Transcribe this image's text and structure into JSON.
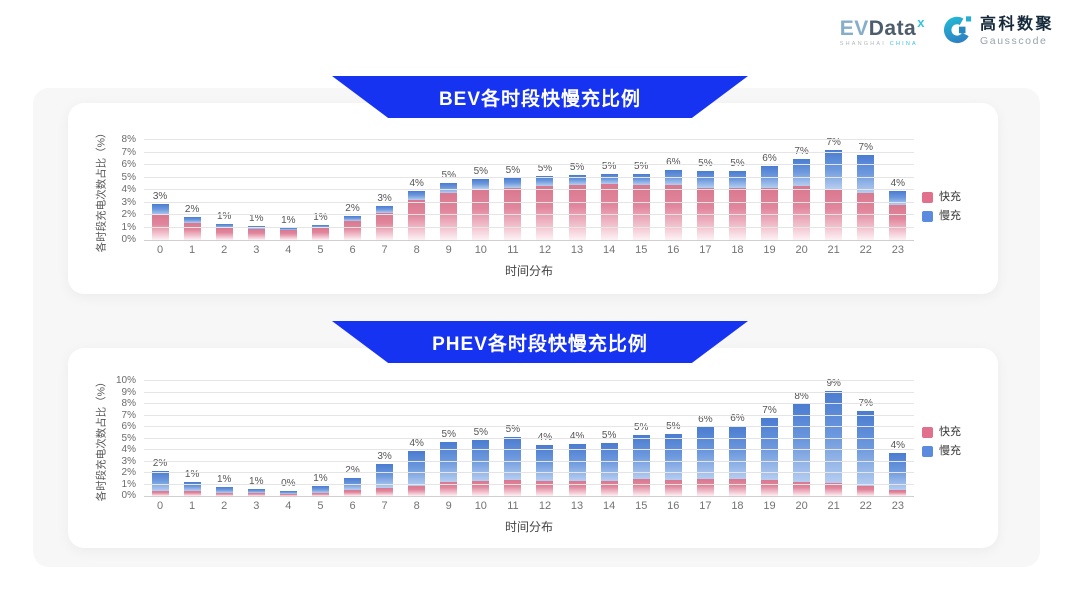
{
  "header": {
    "evdata": {
      "part1": "EV",
      "part2": "Data",
      "sup": "x",
      "sub1": "SHANGHAI",
      "sub2": "CHINA"
    },
    "gausscode": {
      "name_cn": "高科数聚",
      "name_en": "Gausscode"
    }
  },
  "colors": {
    "banner_blue": "#1733f2",
    "fast_charge_pink": "#e0708b",
    "slow_charge_blue": "#5b8bdf",
    "grid_gray": "#e5e5e5"
  },
  "chart_data": [
    {
      "type": "bar",
      "stacked": true,
      "title": "BEV各时段快慢充比例",
      "xlabel": "时间分布",
      "ylabel": "各时段充电次数占比（%）",
      "ylim": [
        0,
        8
      ],
      "ystep": 1,
      "grid": true,
      "legend_position": "right",
      "categories": [
        "0",
        "1",
        "2",
        "3",
        "4",
        "5",
        "6",
        "7",
        "8",
        "9",
        "10",
        "11",
        "12",
        "13",
        "14",
        "15",
        "16",
        "17",
        "18",
        "19",
        "20",
        "21",
        "22",
        "23"
      ],
      "bar_labels": [
        "3%",
        "2%",
        "1%",
        "1%",
        "1%",
        "1%",
        "2%",
        "3%",
        "4%",
        "5%",
        "5%",
        "5%",
        "5%",
        "5%",
        "5%",
        "5%",
        "6%",
        "5%",
        "5%",
        "6%",
        "7%",
        "7%",
        "7%",
        "4%"
      ],
      "series": [
        {
          "name": "快充",
          "color": "#e0708b",
          "values": [
            2.0,
            1.4,
            0.95,
            0.85,
            0.8,
            0.95,
            1.5,
            2.2,
            3.2,
            3.8,
            4.1,
            4.2,
            4.3,
            4.4,
            4.5,
            4.4,
            4.4,
            4.2,
            4.2,
            4.2,
            4.3,
            4.1,
            3.8,
            2.8
          ]
        },
        {
          "name": "慢充",
          "color": "#5b8bdf",
          "values": [
            0.9,
            0.45,
            0.35,
            0.25,
            0.15,
            0.25,
            0.4,
            0.55,
            0.7,
            0.8,
            0.8,
            0.8,
            0.8,
            0.8,
            0.8,
            0.9,
            1.2,
            1.3,
            1.3,
            1.7,
            2.2,
            3.1,
            3.0,
            1.1
          ]
        }
      ]
    },
    {
      "type": "bar",
      "stacked": true,
      "title": "PHEV各时段快慢充比例",
      "xlabel": "时间分布",
      "ylabel": "各时段充电次数占比（%）",
      "ylim": [
        0,
        10
      ],
      "ystep": 1,
      "grid": true,
      "legend_position": "right",
      "categories": [
        "0",
        "1",
        "2",
        "3",
        "4",
        "5",
        "6",
        "7",
        "8",
        "9",
        "10",
        "11",
        "12",
        "13",
        "14",
        "15",
        "16",
        "17",
        "18",
        "19",
        "20",
        "21",
        "22",
        "23"
      ],
      "bar_labels": [
        "2%",
        "1%",
        "1%",
        "1%",
        "0%",
        "1%",
        "2%",
        "3%",
        "4%",
        "5%",
        "5%",
        "5%",
        "4%",
        "4%",
        "5%",
        "5%",
        "5%",
        "6%",
        "6%",
        "7%",
        "8%",
        "9%",
        "7%",
        "4%"
      ],
      "series": [
        {
          "name": "快充",
          "color": "#e0708b",
          "values": [
            0.45,
            0.4,
            0.3,
            0.25,
            0.2,
            0.3,
            0.55,
            0.7,
            0.9,
            1.2,
            1.3,
            1.4,
            1.3,
            1.3,
            1.3,
            1.5,
            1.4,
            1.5,
            1.5,
            1.4,
            1.2,
            1.1,
            0.9,
            0.5
          ]
        },
        {
          "name": "慢充",
          "color": "#5b8bdf",
          "values": [
            1.75,
            0.85,
            0.5,
            0.4,
            0.25,
            0.55,
            1.0,
            2.1,
            3.0,
            3.5,
            3.6,
            3.7,
            3.1,
            3.2,
            3.3,
            3.8,
            4.0,
            4.5,
            4.6,
            5.4,
            6.8,
            8.0,
            6.5,
            3.2
          ]
        }
      ]
    }
  ]
}
